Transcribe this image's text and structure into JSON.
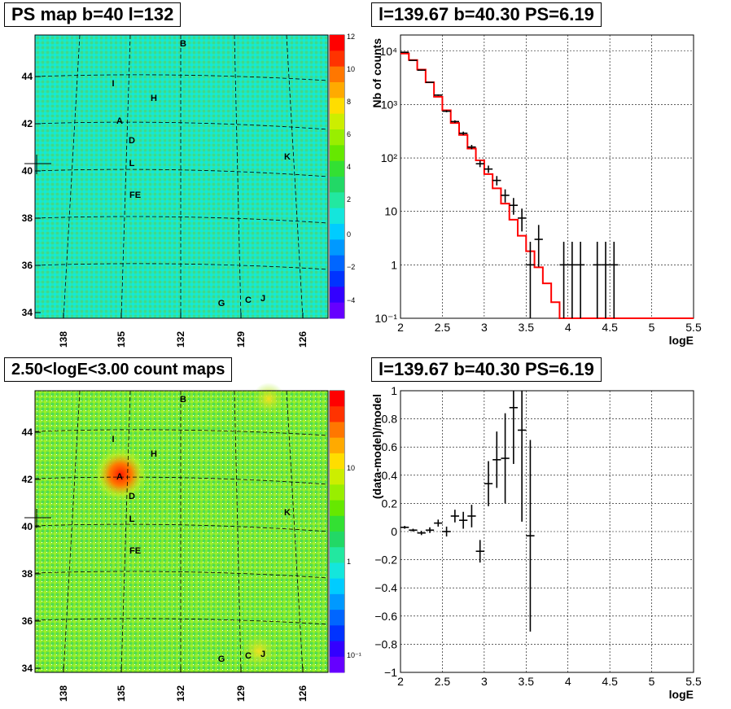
{
  "panels": {
    "ps_map": {
      "title": "PS map b=40 l=132",
      "y_ticks": [
        "44",
        "42",
        "40",
        "38",
        "36",
        "34"
      ],
      "x_ticks": [
        "138",
        "135",
        "132",
        "129",
        "126"
      ],
      "colorbar_ticks": [
        "12",
        "10",
        "8",
        "6",
        "4",
        "2",
        "0",
        "−2",
        "−4"
      ],
      "sources": [
        "B",
        "I",
        "H",
        "A",
        "D",
        "K",
        "L",
        "FE",
        "G",
        "C",
        "J"
      ]
    },
    "count_map": {
      "title": "2.50<logE<3.00 count maps",
      "y_ticks": [
        "44",
        "42",
        "40",
        "38",
        "36",
        "34"
      ],
      "x_ticks": [
        "138",
        "135",
        "132",
        "129",
        "126"
      ],
      "colorbar_ticks": [
        "10",
        "1",
        "10⁻¹"
      ],
      "sources": [
        "B",
        "I",
        "H",
        "A",
        "D",
        "K",
        "L",
        "FE",
        "G",
        "C",
        "J"
      ]
    }
  },
  "chart_data": [
    {
      "type": "line",
      "title": "l=139.67 b=40.30 PS=6.19",
      "xlabel": "logE",
      "ylabel": "Nb of counts",
      "xlim": [
        2,
        5.5
      ],
      "ylim": [
        0.1,
        20000
      ],
      "yscale": "log",
      "grid": true,
      "x_ticks": [
        "2",
        "2.5",
        "3",
        "3.5",
        "4",
        "4.5",
        "5",
        "5.5"
      ],
      "y_ticks": [
        "10⁻¹",
        "1",
        "10",
        "10²",
        "10³",
        "10⁴"
      ],
      "series": [
        {
          "style": "histogram",
          "color": "#ff0000",
          "x": [
            2.05,
            2.15,
            2.25,
            2.35,
            2.45,
            2.55,
            2.65,
            2.75,
            2.85,
            2.95,
            3.05,
            3.15,
            3.25,
            3.35,
            3.45,
            3.55,
            3.65,
            3.75,
            3.85,
            3.95,
            4.05,
            4.15,
            4.25,
            4.35,
            4.45,
            4.55,
            4.65,
            4.75,
            4.85,
            4.95,
            5.05,
            5.15,
            5.25,
            5.35,
            5.45
          ],
          "values": [
            9000,
            6800,
            4500,
            2600,
            1400,
            780,
            450,
            270,
            150,
            90,
            50,
            27,
            14,
            7,
            3.5,
            1.8,
            0.9,
            0.45,
            0.2,
            0.1,
            0.1,
            0.1,
            0.1,
            0.1,
            0.1,
            0.1,
            0.1,
            0.1,
            0.1,
            0.1,
            0.1,
            0.1,
            0.1,
            0.1,
            0.1
          ]
        },
        {
          "style": "errorbar",
          "color": "#000000",
          "x": [
            2.05,
            2.15,
            2.25,
            2.35,
            2.45,
            2.55,
            2.65,
            2.75,
            2.85,
            2.95,
            3.05,
            3.15,
            3.25,
            3.35,
            3.45,
            3.55,
            3.65,
            3.95,
            4.05,
            4.15,
            4.35,
            4.45,
            4.55
          ],
          "values": [
            9500,
            6700,
            4400,
            2600,
            1500,
            750,
            480,
            290,
            160,
            78,
            62,
            38,
            20,
            13,
            7.5,
            1,
            3,
            1,
            1,
            1,
            1,
            1,
            1
          ]
        }
      ]
    },
    {
      "type": "scatter",
      "title": "l=139.67 b=40.30 PS=6.19",
      "xlabel": "logE",
      "ylabel": "(data-model)/model",
      "xlim": [
        2,
        5.5
      ],
      "ylim": [
        -1,
        1
      ],
      "grid": true,
      "x_ticks": [
        "2",
        "2.5",
        "3",
        "3.5",
        "4",
        "4.5",
        "5",
        "5.5"
      ],
      "y_ticks": [
        "1",
        "0.8",
        "0.6",
        "0.4",
        "0.2",
        "0",
        "−0.2",
        "−0.4",
        "−0.6",
        "−0.8",
        "−1"
      ],
      "x": [
        2.05,
        2.15,
        2.25,
        2.35,
        2.45,
        2.55,
        2.65,
        2.75,
        2.85,
        2.95,
        3.05,
        3.15,
        3.25,
        3.35,
        3.45,
        3.55
      ],
      "values": [
        0.03,
        0.01,
        -0.01,
        0.01,
        0.06,
        0.0,
        0.11,
        0.08,
        0.11,
        -0.14,
        0.34,
        0.51,
        0.52,
        0.88,
        0.72,
        -0.03
      ],
      "errors": [
        0.01,
        0.01,
        0.015,
        0.02,
        0.025,
        0.035,
        0.045,
        0.06,
        0.08,
        0.08,
        0.16,
        0.2,
        0.32,
        0.4,
        0.65,
        0.68
      ],
      "series": [
        {
          "values": [
            0.03,
            0.01,
            -0.01,
            0.01,
            0.06,
            0.0,
            0.11,
            0.08,
            0.11,
            -0.14,
            0.34,
            0.51,
            0.52,
            0.88,
            0.72,
            -0.03
          ]
        }
      ]
    }
  ]
}
